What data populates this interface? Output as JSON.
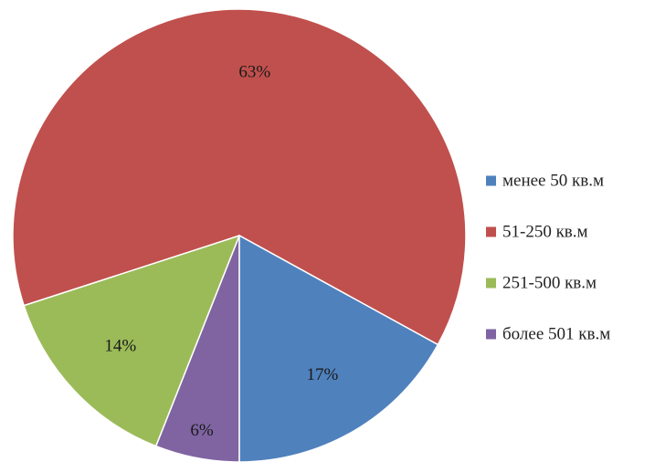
{
  "chart_data": {
    "type": "pie",
    "title": "",
    "slices": [
      {
        "label": "менее 50 кв.м",
        "value": 17,
        "value_label": "17%",
        "color": "#4f81bd"
      },
      {
        "label": "51-250 кв.м",
        "value": 63,
        "value_label": "63%",
        "color": "#c0504d"
      },
      {
        "label": "251-500 кв.м",
        "value": 14,
        "value_label": "14%",
        "color": "#9bbb59"
      },
      {
        "label": "более 501 кв.м",
        "value": 6,
        "value_label": "6%",
        "color": "#8064a2"
      }
    ],
    "legend_position": "right",
    "start_slice": "более 501 кв.м",
    "start_direction": "bottom, clockwise"
  }
}
